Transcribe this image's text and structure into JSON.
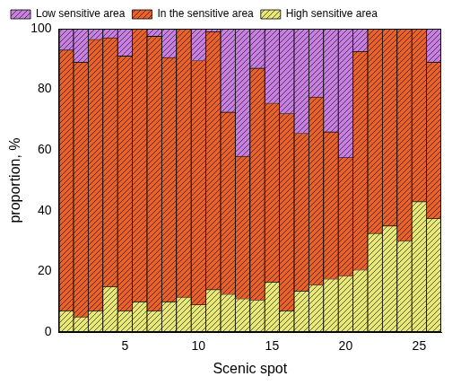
{
  "chart_data": {
    "type": "bar",
    "stacked": true,
    "x_label": "Scenic spot",
    "y_label": "proportion, %",
    "x": [
      1,
      2,
      3,
      4,
      5,
      6,
      7,
      8,
      9,
      10,
      11,
      12,
      13,
      14,
      15,
      16,
      17,
      18,
      19,
      20,
      21,
      22,
      23,
      24,
      25,
      26
    ],
    "xlim": [
      0.5,
      26.5
    ],
    "xticks": [
      5,
      10,
      15,
      20,
      25
    ],
    "ylim": [
      0,
      100
    ],
    "yticks": [
      0,
      20,
      40,
      60,
      80,
      100
    ],
    "grid": false,
    "legend": "upper left",
    "series": [
      {
        "name": "High sensitive area",
        "color": "#e8e878",
        "values": [
          7,
          5,
          7,
          15,
          7,
          10,
          7,
          10,
          11.5,
          9,
          14,
          12.5,
          11,
          10.5,
          16.5,
          7,
          13.5,
          15.5,
          17.5,
          18.5,
          20.5,
          32.5,
          35,
          30,
          43,
          37.5
        ]
      },
      {
        "name": "In the sensitive area",
        "color": "#e8622a",
        "values": [
          86,
          84,
          89.5,
          82,
          84,
          90,
          90.5,
          80.5,
          88.5,
          80.5,
          85,
          60,
          47,
          76.5,
          59,
          65,
          52,
          62,
          48.5,
          39,
          72,
          67.5,
          65,
          70,
          57,
          51.5
        ]
      },
      {
        "name": "Low sensitive area",
        "color": "#c880e0",
        "values": [
          7,
          11,
          3.5,
          3,
          9,
          0,
          2.5,
          9.5,
          0,
          10.5,
          1,
          27.5,
          42,
          13,
          24.5,
          28,
          34.5,
          22.5,
          34,
          42.5,
          7.5,
          0,
          0,
          0,
          0,
          11
        ]
      }
    ]
  }
}
